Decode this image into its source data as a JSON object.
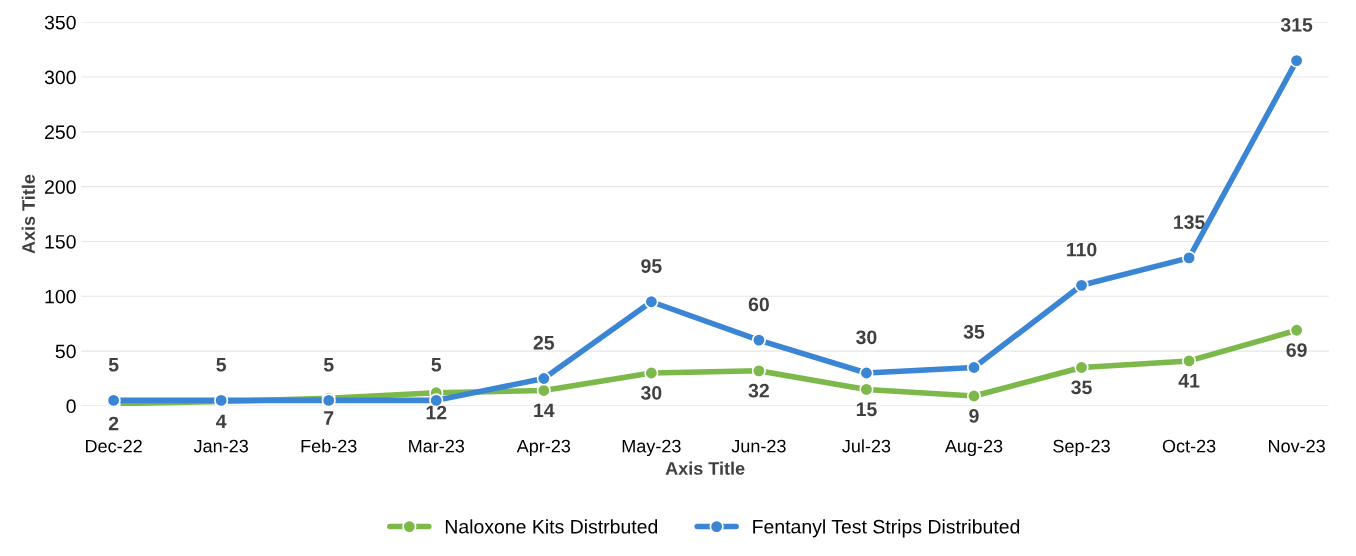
{
  "chart_data": {
    "type": "line",
    "xlabel": "Axis Title",
    "ylabel": "Axis Title",
    "categories": [
      "Dec-22",
      "Jan-23",
      "Feb-23",
      "Mar-23",
      "Apr-23",
      "May-23",
      "Jun-23",
      "Jul-23",
      "Aug-23",
      "Sep-23",
      "Oct-23",
      "Nov-23"
    ],
    "series": [
      {
        "name": "Naloxone Kits Distrbuted",
        "color": "#7cb84a",
        "values": [
          2,
          4,
          7,
          12,
          14,
          30,
          32,
          15,
          9,
          35,
          41,
          69
        ]
      },
      {
        "name": "Fentanyl Test Strips Distributed",
        "color": "#3a86d4",
        "values": [
          5,
          5,
          5,
          5,
          25,
          95,
          60,
          30,
          35,
          110,
          135,
          315
        ]
      }
    ],
    "ylim": [
      0,
      350
    ],
    "yticks": [
      0,
      50,
      100,
      150,
      200,
      250,
      300,
      350
    ],
    "grid": "y",
    "legend": "bottom",
    "marker": "circle",
    "line_style": "solid",
    "data_labels": true
  }
}
